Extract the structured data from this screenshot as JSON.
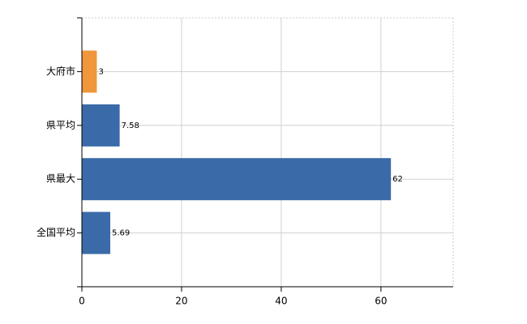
{
  "chart_data": {
    "type": "hbar",
    "categories": [
      "大府市",
      "県平均",
      "県最大",
      "全国平均"
    ],
    "values": [
      3,
      7.58,
      62,
      5.69
    ],
    "colors": [
      "#f0963c",
      "#3a6aa8",
      "#3a6aa8",
      "#3a6aa8"
    ],
    "xlim": [
      0,
      74.5
    ],
    "xticks": [
      0,
      20,
      40,
      60
    ],
    "grid": true
  }
}
